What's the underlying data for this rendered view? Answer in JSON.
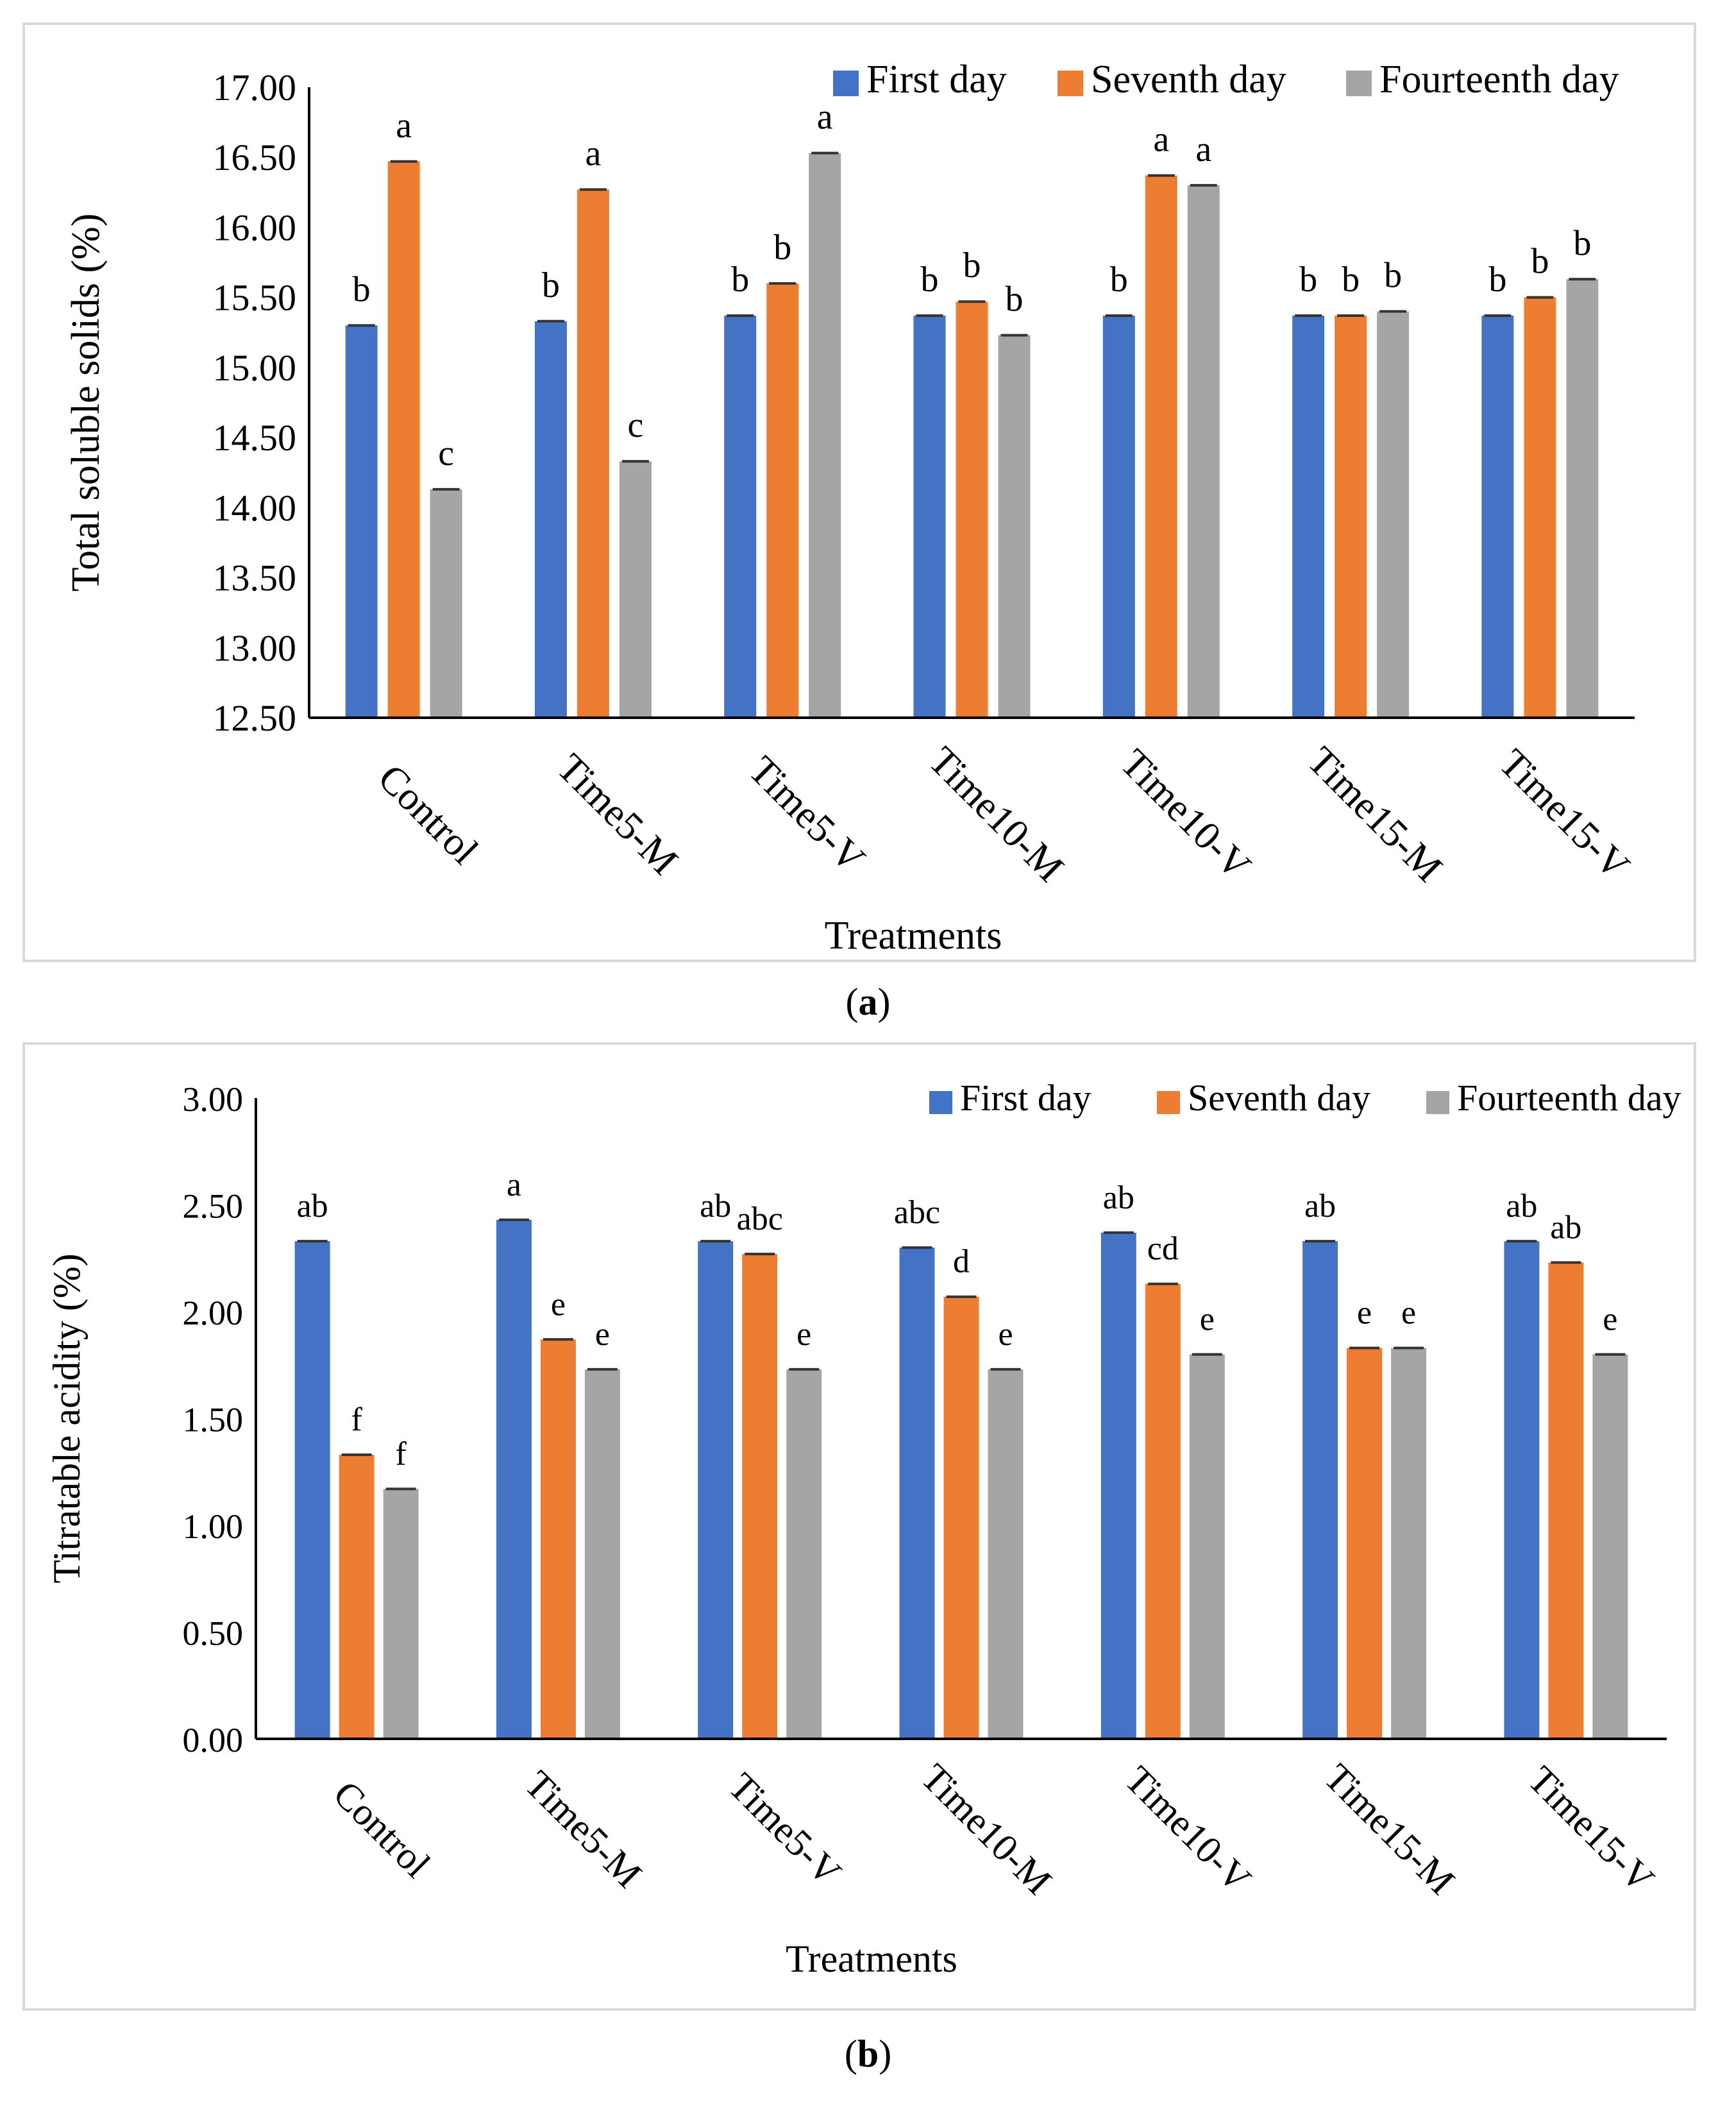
{
  "legend": [
    "First day",
    "Seventh day",
    "Fourteenth day"
  ],
  "colors": {
    "first": "#4472c4",
    "seventh": "#ed7d31",
    "fourteenth": "#a5a5a5"
  },
  "captions": {
    "a": "a",
    "b": "b"
  },
  "chart_data": [
    {
      "type": "bar",
      "xlabel": "Treatments",
      "ylabel": "Total soluble solids (%)",
      "ylim": [
        12.5,
        17.0
      ],
      "yticks": [
        "12.50",
        "13.00",
        "13.50",
        "14.00",
        "14.50",
        "15.00",
        "15.50",
        "16.00",
        "16.50",
        "17.00"
      ],
      "categories": [
        "Control",
        "Time5-M",
        "Time5-V",
        "Time10-M",
        "Time10-V",
        "Time15-M",
        "Time15-V"
      ],
      "series": [
        {
          "name": "First day",
          "values": [
            15.3,
            15.33,
            15.37,
            15.37,
            15.37,
            15.37,
            15.37
          ],
          "labels": [
            "b",
            "b",
            "b",
            "b",
            "b",
            "b",
            "b"
          ]
        },
        {
          "name": "Seventh day",
          "values": [
            16.47,
            16.27,
            15.6,
            15.47,
            16.37,
            15.37,
            15.5
          ],
          "labels": [
            "a",
            "a",
            "b",
            "b",
            "a",
            "b",
            "b"
          ]
        },
        {
          "name": "Fourteenth day",
          "values": [
            14.13,
            14.33,
            16.53,
            15.23,
            16.3,
            15.4,
            15.63
          ],
          "labels": [
            "c",
            "c",
            "a",
            "b",
            "a",
            "b",
            "b"
          ]
        }
      ]
    },
    {
      "type": "bar",
      "xlabel": "Treatments",
      "ylabel": "Titratable acidity (%)",
      "ylim": [
        0,
        3.0
      ],
      "yticks": [
        "0.00",
        "0.50",
        "1.00",
        "1.50",
        "2.00",
        "2.50",
        "3.00"
      ],
      "categories": [
        "Control",
        "Time5-M",
        "Time5-V",
        "Time10-M",
        "Time10-V",
        "Time15-M",
        "Time15-V"
      ],
      "series": [
        {
          "name": "First day",
          "values": [
            2.33,
            2.43,
            2.33,
            2.3,
            2.37,
            2.33,
            2.33
          ],
          "labels": [
            "ab",
            "a",
            "ab",
            "abc",
            "ab",
            "ab",
            "ab"
          ]
        },
        {
          "name": "Seventh day",
          "values": [
            1.33,
            1.87,
            2.27,
            2.07,
            2.13,
            1.83,
            2.23
          ],
          "labels": [
            "f",
            "e",
            "abc",
            "d",
            "cd",
            "e",
            "ab"
          ]
        },
        {
          "name": "Fourteenth day",
          "values": [
            1.17,
            1.73,
            1.73,
            1.73,
            1.8,
            1.83,
            1.8
          ],
          "labels": [
            "f",
            "e",
            "e",
            "e",
            "e",
            "e",
            "e"
          ]
        }
      ]
    }
  ]
}
